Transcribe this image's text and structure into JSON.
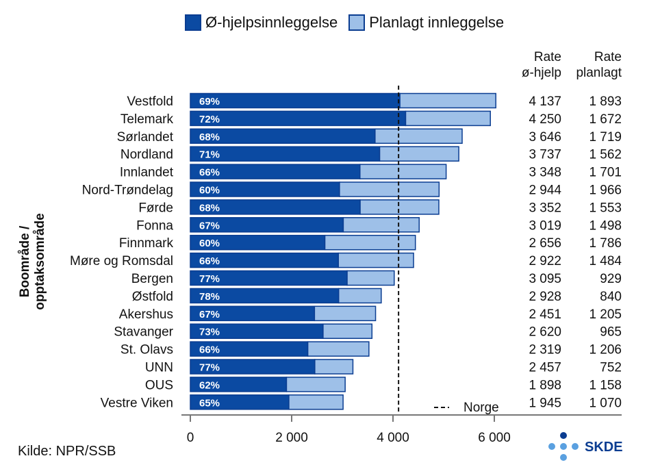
{
  "legend": {
    "emergency_label": "Ø-hjelpsinnleggelse",
    "planned_label": "Planlagt innleggelse"
  },
  "table_header": {
    "col1_line1": "Rate",
    "col1_line2": "ø-hjelp",
    "col2_line1": "Rate",
    "col2_line2": "planlagt"
  },
  "ylabel": "Boområde / opptaksområde",
  "source": "Kilde: NPR/SSB",
  "logo_text": "SKDE",
  "norge_label": "Norge",
  "colors": {
    "emergency": "#0b4aa2",
    "planned": "#9ec0e8",
    "border": "#0b3d91"
  },
  "chart_data": {
    "type": "bar",
    "orientation": "horizontal",
    "stacked": true,
    "xlim": [
      0,
      6000
    ],
    "x_ticks": [
      0,
      2000,
      4000,
      6000
    ],
    "x_tick_labels": [
      "0",
      "2 000",
      "4 000",
      "6 000"
    ],
    "reference_line": {
      "name": "Norge",
      "value": 4110
    },
    "categories": [
      "Vestfold",
      "Telemark",
      "Sørlandet",
      "Nordland",
      "Innlandet",
      "Nord-Trøndelag",
      "Førde",
      "Fonna",
      "Finnmark",
      "Møre og Romsdal",
      "Bergen",
      "Østfold",
      "Akershus",
      "Stavanger",
      "St. Olavs",
      "UNN",
      "OUS",
      "Vestre Viken"
    ],
    "series": [
      {
        "name": "Ø-hjelpsinnleggelse",
        "values": [
          4137,
          4250,
          3646,
          3737,
          3348,
          2944,
          3352,
          3019,
          2656,
          2922,
          3095,
          2928,
          2451,
          2620,
          2319,
          2457,
          1898,
          1945
        ]
      },
      {
        "name": "Planlagt innleggelse",
        "values": [
          1893,
          1672,
          1719,
          1562,
          1701,
          1966,
          1553,
          1498,
          1786,
          1484,
          929,
          840,
          1205,
          965,
          1206,
          752,
          1158,
          1070
        ]
      }
    ],
    "percent_labels": [
      "69%",
      "72%",
      "68%",
      "71%",
      "66%",
      "60%",
      "68%",
      "67%",
      "60%",
      "66%",
      "77%",
      "78%",
      "67%",
      "73%",
      "66%",
      "77%",
      "62%",
      "65%"
    ],
    "rate_emergency_labels": [
      "4 137",
      "4 250",
      "3 646",
      "3 737",
      "3 348",
      "2 944",
      "3 352",
      "3 019",
      "2 656",
      "2 922",
      "3 095",
      "2 928",
      "2 451",
      "2 620",
      "2 319",
      "2 457",
      "1 898",
      "1 945"
    ],
    "rate_planned_labels": [
      "1 893",
      "1 672",
      "1 719",
      "1 562",
      "1 701",
      "1 966",
      "1 553",
      "1 498",
      "1 786",
      "1 484",
      "929",
      "840",
      "1 205",
      "965",
      "1 206",
      "752",
      "1 158",
      "1 070"
    ]
  }
}
